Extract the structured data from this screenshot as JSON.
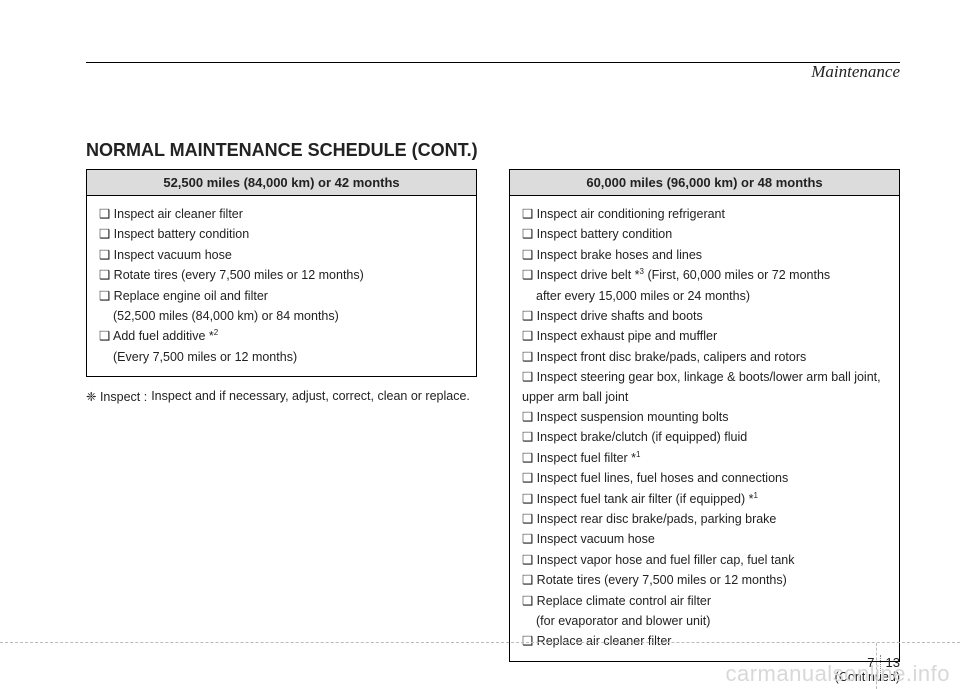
{
  "header": {
    "section": "Maintenance"
  },
  "title": "NORMAL MAINTENANCE SCHEDULE (CONT.)",
  "left": {
    "heading": "52,500 miles (84,000 km) or 42 months",
    "items": [
      {
        "text": "Inspect air cleaner filter"
      },
      {
        "text": "Inspect battery condition"
      },
      {
        "text": "Inspect vacuum hose"
      },
      {
        "text": "Rotate tires (every 7,500 miles or 12 months)"
      },
      {
        "text": "Replace engine oil and filter",
        "sub": "(52,500 miles (84,000 km) or 84 months)"
      },
      {
        "text": "Add fuel additive *",
        "sup": "2",
        "sub": "(Every 7,500 miles or 12 months)"
      }
    ],
    "note_label": "❈ Inspect :",
    "note_text": "Inspect and if necessary, adjust, correct, clean or replace."
  },
  "right": {
    "heading": "60,000 miles (96,000 km) or 48 months",
    "items": [
      {
        "text": "Inspect air conditioning refrigerant"
      },
      {
        "text": "Inspect battery condition"
      },
      {
        "text": "Inspect brake hoses and lines"
      },
      {
        "text": "Inspect drive belt *",
        "sup": "3",
        "tail": " (First, 60,000 miles or 72 months",
        "sub": "after every 15,000 miles or 24 months)"
      },
      {
        "text": "Inspect drive shafts and boots"
      },
      {
        "text": "Inspect exhaust pipe and muffler"
      },
      {
        "text": "Inspect front disc brake/pads, calipers and rotors"
      },
      {
        "text": "Inspect steering gear box, linkage & boots/lower arm ball joint, upper arm ball joint"
      },
      {
        "text": "Inspect suspension mounting bolts"
      },
      {
        "text": "Inspect brake/clutch (if equipped) fluid"
      },
      {
        "text": "Inspect fuel filter *",
        "sup": "1"
      },
      {
        "text": "Inspect fuel lines, fuel hoses and connections"
      },
      {
        "text": "Inspect fuel tank air filter (if equipped) *",
        "sup": "1"
      },
      {
        "text": "Inspect rear disc brake/pads, parking brake"
      },
      {
        "text": "Inspect vacuum hose"
      },
      {
        "text": "Inspect vapor hose and fuel filler cap, fuel tank"
      },
      {
        "text": "Rotate tires (every 7,500 miles or 12 months)"
      },
      {
        "text": "Replace climate control air filter",
        "sub": "(for evaporator and blower unit)"
      },
      {
        "text": "Replace air cleaner filter"
      }
    ],
    "continued": "(Continued)"
  },
  "footer": {
    "chapter": "7",
    "page": "13"
  },
  "watermark": "carmanualsonline.info",
  "colors": {
    "box_head_bg": "#dcdcdc",
    "border": "#000000",
    "text": "#222222",
    "watermark": "#d8d8d8"
  }
}
